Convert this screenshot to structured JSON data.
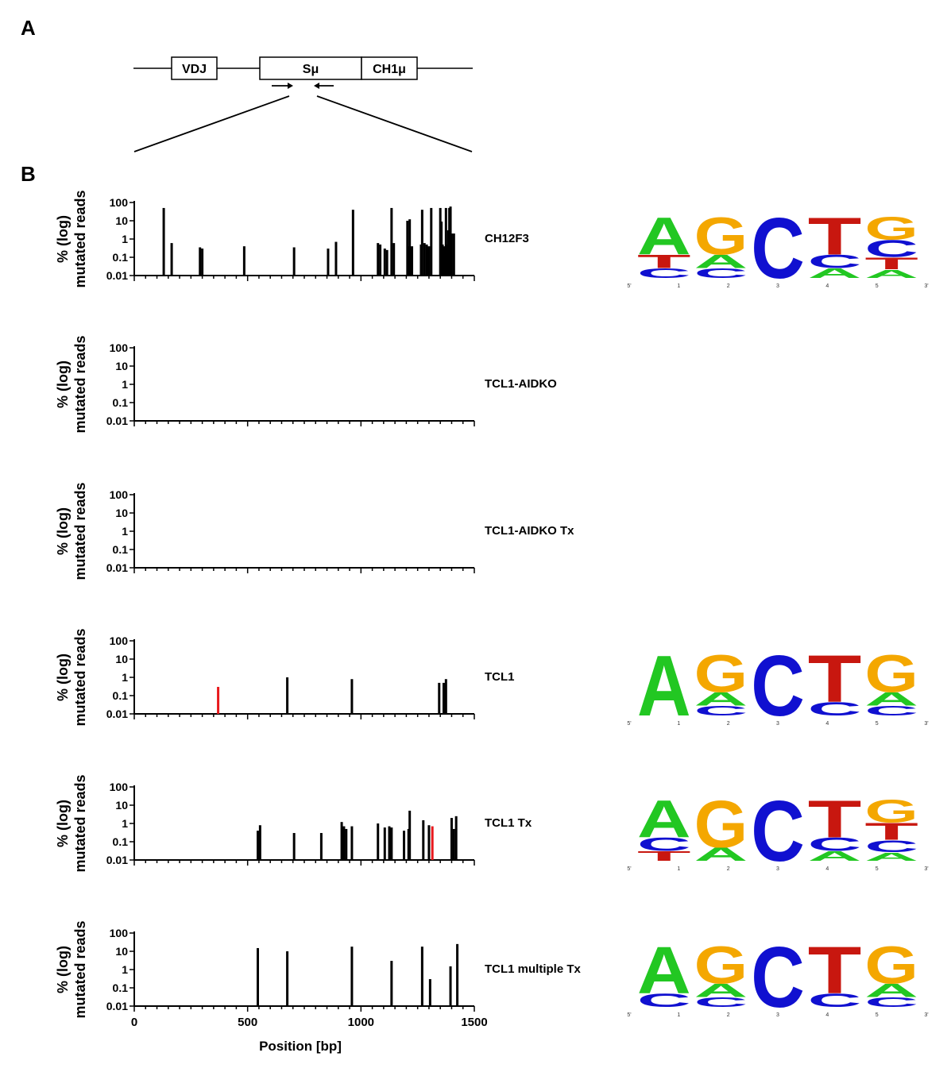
{
  "panels": {
    "a": "A",
    "b": "B"
  },
  "locus": {
    "boxes": [
      "VDJ",
      "Sμ",
      "CH1μ"
    ]
  },
  "colors": {
    "bar": "#000000",
    "highlight": "#e8191d",
    "A": "#22c722",
    "G": "#f4a700",
    "C": "#1010d0",
    "T": "#c8170f"
  },
  "chart_data": [
    {
      "type": "bar",
      "sample": "CH12F3",
      "ylabel": [
        "% (log)",
        "mutated reads"
      ],
      "yscale": "log",
      "ylim": [
        0.01,
        100
      ],
      "yticks": [
        "100",
        "10",
        "1",
        "0.1",
        "0.01"
      ],
      "x": [
        130,
        165,
        290,
        300,
        485,
        705,
        855,
        890,
        965,
        1075,
        1085,
        1105,
        1115,
        1135,
        1145,
        1205,
        1210,
        1215,
        1220,
        1225,
        1265,
        1270,
        1280,
        1290,
        1300,
        1310,
        1350,
        1355,
        1360,
        1370,
        1375,
        1380,
        1385,
        1390,
        1395,
        1400,
        1410
      ],
      "values": [
        50,
        0.6,
        0.35,
        0.3,
        0.4,
        0.35,
        0.3,
        0.7,
        40,
        0.6,
        0.5,
        0.3,
        0.25,
        50,
        0.6,
        10,
        0.4,
        12,
        0.35,
        0.4,
        0.5,
        40,
        0.6,
        0.5,
        0.4,
        50,
        50,
        9,
        0.5,
        0.4,
        50,
        0.5,
        3,
        50,
        60,
        2,
        2
      ],
      "highlight": []
    },
    {
      "type": "bar",
      "sample": "TCL1-AIDKO",
      "ylabel": [
        "% (log)",
        "mutated reads"
      ],
      "yscale": "log",
      "ylim": [
        0.01,
        100
      ],
      "yticks": [
        "100",
        "10",
        "1",
        "0.1",
        "0.01"
      ],
      "x": [],
      "values": [],
      "highlight": []
    },
    {
      "type": "bar",
      "sample": "TCL1-AIDKO Tx",
      "ylabel": [
        "% (log)",
        "mutated reads"
      ],
      "yscale": "log",
      "ylim": [
        0.01,
        100
      ],
      "yticks": [
        "100",
        "10",
        "1",
        "0.1",
        "0.01"
      ],
      "x": [],
      "values": [],
      "highlight": []
    },
    {
      "type": "bar",
      "sample": "TCL1",
      "ylabel": [
        "% (log)",
        "mutated reads"
      ],
      "yscale": "log",
      "ylim": [
        0.01,
        100
      ],
      "yticks": [
        "100",
        "10",
        "1",
        "0.1",
        "0.01"
      ],
      "x": [
        370,
        675,
        960,
        1345,
        1365,
        1375
      ],
      "values": [
        0.3,
        1,
        0.8,
        0.5,
        0.5,
        0.8
      ],
      "highlight": [
        370
      ]
    },
    {
      "type": "bar",
      "sample": "TCL1 Tx",
      "ylabel": [
        "% (log)",
        "mutated reads"
      ],
      "yscale": "log",
      "ylim": [
        0.01,
        100
      ],
      "yticks": [
        "100",
        "10",
        "1",
        "0.1",
        "0.01"
      ],
      "x": [
        545,
        555,
        705,
        825,
        915,
        925,
        935,
        960,
        1075,
        1105,
        1125,
        1135,
        1190,
        1210,
        1215,
        1275,
        1300,
        1315,
        1400,
        1410,
        1420
      ],
      "values": [
        0.4,
        0.8,
        0.3,
        0.3,
        1.2,
        0.7,
        0.5,
        0.7,
        1,
        0.6,
        0.7,
        0.6,
        0.4,
        0.5,
        5,
        1.5,
        0.8,
        0.7,
        2,
        0.5,
        2.5
      ],
      "highlight": [
        1315
      ]
    },
    {
      "type": "bar",
      "sample": "TCL1 multiple Tx",
      "ylabel": [
        "% (log)",
        "mutated reads"
      ],
      "yscale": "log",
      "ylim": [
        0.01,
        100
      ],
      "yticks": [
        "100",
        "10",
        "1",
        "0.1",
        "0.01"
      ],
      "x": [
        545,
        675,
        960,
        1135,
        1270,
        1305,
        1395,
        1425
      ],
      "values": [
        15,
        10,
        18,
        3,
        18,
        0.3,
        1.5,
        25
      ],
      "highlight": [],
      "xlabel": "Position [bp]",
      "xticks": [
        "0",
        "500",
        "1000",
        "1500"
      ],
      "xlim": [
        0,
        1500
      ]
    }
  ],
  "logos": [
    {
      "row": 0,
      "pos_labels": [
        "5'",
        "1",
        "2",
        "3",
        "4",
        "5",
        "3'"
      ],
      "columns": [
        [
          "A",
          "T",
          "C"
        ],
        [
          "G",
          "A",
          "C"
        ],
        [
          "C"
        ],
        [
          "T",
          "C",
          "A"
        ],
        [
          "G",
          "C",
          "T",
          "A"
        ]
      ]
    },
    {
      "row": 3,
      "pos_labels": [
        "5'",
        "1",
        "2",
        "3",
        "4",
        "5",
        "3'"
      ],
      "columns": [
        [
          "A"
        ],
        [
          "G",
          "A",
          "C"
        ],
        [
          "C"
        ],
        [
          "T",
          "C"
        ],
        [
          "G",
          "A",
          "C"
        ]
      ]
    },
    {
      "row": 4,
      "pos_labels": [
        "5'",
        "1",
        "2",
        "3",
        "4",
        "5",
        "3'"
      ],
      "columns": [
        [
          "A",
          "C",
          "T"
        ],
        [
          "G",
          "A"
        ],
        [
          "C"
        ],
        [
          "T",
          "C",
          "A"
        ],
        [
          "G",
          "T",
          "C",
          "A"
        ]
      ]
    },
    {
      "row": 5,
      "pos_labels": [
        "5'",
        "1",
        "2",
        "3",
        "4",
        "5",
        "3'"
      ],
      "columns": [
        [
          "A",
          "C"
        ],
        [
          "G",
          "A",
          "C"
        ],
        [
          "C"
        ],
        [
          "T",
          "C"
        ],
        [
          "G",
          "A",
          "C"
        ]
      ]
    }
  ]
}
